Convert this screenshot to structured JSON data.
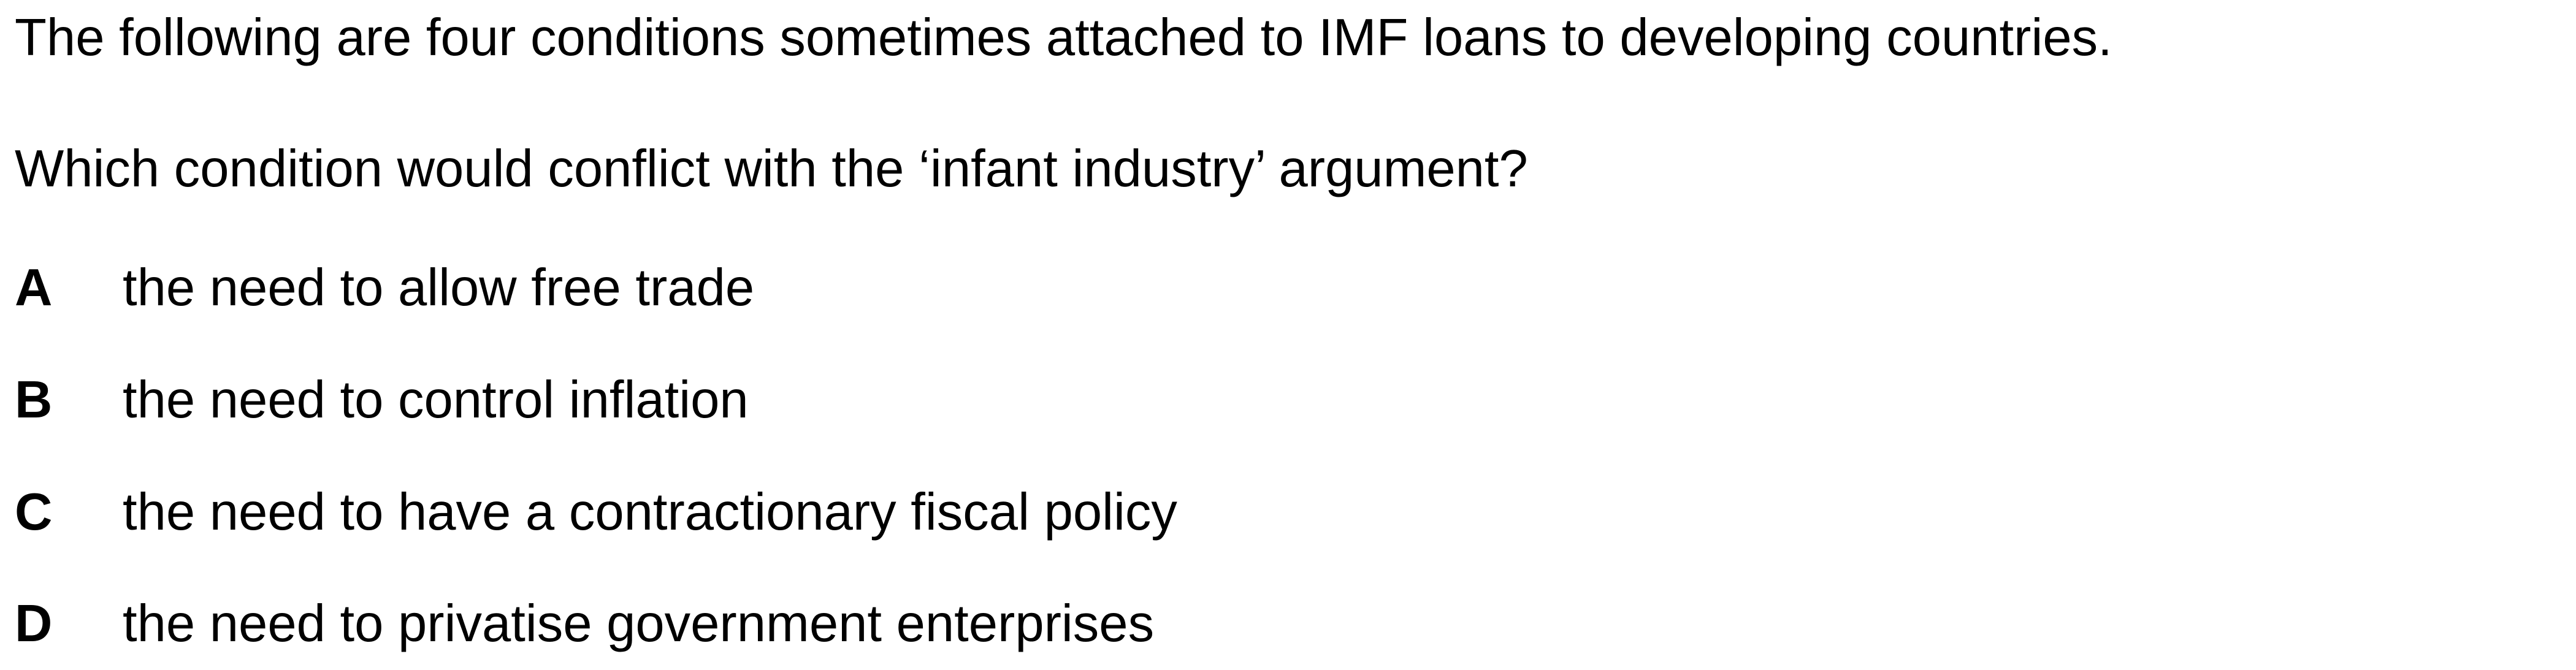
{
  "intro": "The following are four conditions sometimes attached to IMF loans to developing countries.",
  "question": "Which condition would conflict with the ‘infant industry’ argument?",
  "options": [
    {
      "letter": "A",
      "text": "the need to allow free trade"
    },
    {
      "letter": "B",
      "text": "the need to control inflation"
    },
    {
      "letter": "C",
      "text": "the need to have a contractionary fiscal policy"
    },
    {
      "letter": "D",
      "text": "the need to privatise government enterprises"
    }
  ]
}
